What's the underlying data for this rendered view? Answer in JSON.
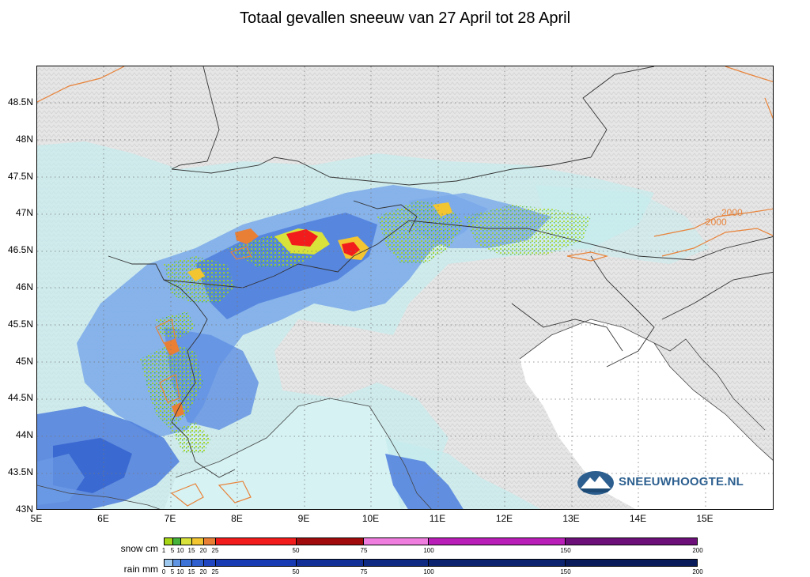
{
  "title": "Totaal gevallen sneeuw van 27 April tot 28 April",
  "map": {
    "lat_labels": [
      "48.5N",
      "48N",
      "47.5N",
      "47N",
      "46.5N",
      "46N",
      "45.5N",
      "45N",
      "44.5N",
      "44N",
      "43.5N",
      "43N"
    ],
    "lon_labels": [
      "5E",
      "6E",
      "7E",
      "8E",
      "9E",
      "10E",
      "11E",
      "12E",
      "13E",
      "14E",
      "15E"
    ],
    "contour_labels": [
      "2000",
      "2000"
    ],
    "contour_color": "#e8833a",
    "border_color": "#333333",
    "sea_color": "#ffffff",
    "land_color": "#e4e4e4"
  },
  "logo": {
    "text": "SNEEUWHOOGTE.NL",
    "icon": "mountain-globe-icon",
    "color": "#2c5f8f"
  },
  "legend": {
    "snow": {
      "label": "snow cm",
      "ticks": [
        "1",
        "5",
        "10",
        "15",
        "20",
        "25",
        "50",
        "75",
        "100",
        "150",
        "200"
      ],
      "colors": [
        "#a6d615",
        "#46b43c",
        "#d9e23a",
        "#f2c531",
        "#e97f35",
        "#f21c1c",
        "#a20b0b",
        "#ef7ddf",
        "#b91fb8",
        "#6d0f79"
      ]
    },
    "rain": {
      "label": "rain mm",
      "ticks": [
        "0",
        "5",
        "10",
        "15",
        "20",
        "25",
        "50",
        "75",
        "100",
        "150",
        "200"
      ],
      "colors": [
        "#9ec8ee",
        "#5f95e3",
        "#3e74d8",
        "#2f5fcf",
        "#1f46c0",
        "#183ab3",
        "#123097",
        "#0f2a82",
        "#0c2470",
        "#091b5a"
      ]
    }
  }
}
